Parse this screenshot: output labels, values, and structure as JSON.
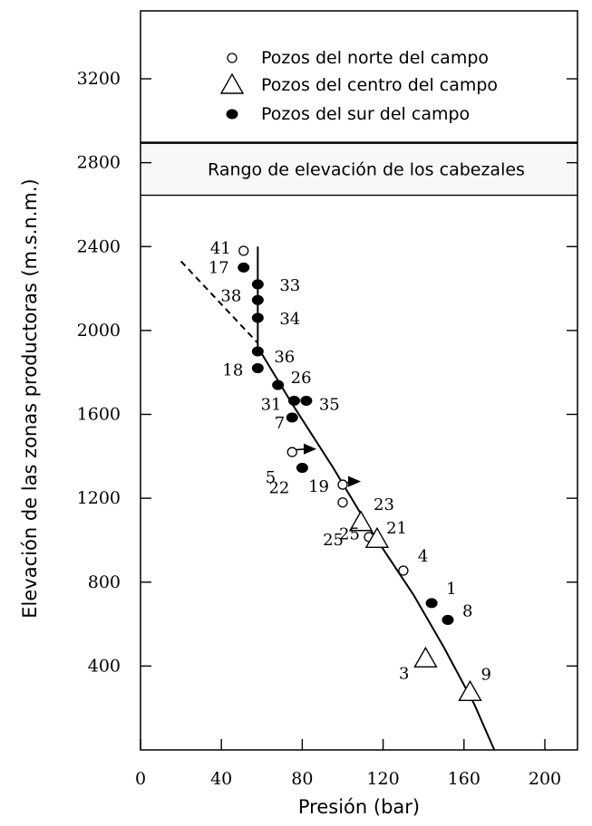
{
  "chart_data": {
    "type": "scatter",
    "xlabel": "Presión (bar)",
    "ylabel": "Elevación de las zonas productoras (m.s.n.m.)",
    "xlim": [
      0,
      220
    ],
    "ylim": [
      0,
      3600
    ],
    "x_ticks": [
      0,
      40,
      80,
      120,
      160,
      200
    ],
    "y_ticks": [
      400,
      800,
      1200,
      1600,
      2000,
      2400,
      2800,
      3200
    ],
    "grid": false,
    "legend": {
      "placement": "top",
      "entries": [
        {
          "marker": "open-circle",
          "label": "Pozos del norte del campo"
        },
        {
          "marker": "triangle",
          "label": "Pozos del centro del  campo"
        },
        {
          "marker": "filled-circle",
          "label": "Pozos del sur del campo"
        }
      ]
    },
    "band": {
      "label": "Rango de elevación de los cabezales",
      "y_range": [
        2645,
        2895
      ]
    },
    "series": [
      {
        "marker": "open-circle",
        "points": [
          {
            "label": "41",
            "x": 51,
            "y": 2380
          },
          {
            "label": "5",
            "x": 75,
            "y": 1420
          },
          {
            "label": "19",
            "x": 100,
            "y": 1265
          },
          {
            "label": "23",
            "x": 100,
            "y": 1180
          },
          {
            "label": "25",
            "x": 113,
            "y": 1015
          },
          {
            "label": "4",
            "x": 130,
            "y": 855
          }
        ]
      },
      {
        "marker": "triangle",
        "points": [
          {
            "label": "21",
            "x": 109,
            "y": 1085
          },
          {
            "label": "25",
            "x": 117,
            "y": 1005
          },
          {
            "label": "3",
            "x": 141,
            "y": 435
          },
          {
            "label": "9",
            "x": 163,
            "y": 275
          }
        ]
      },
      {
        "marker": "filled-circle",
        "points": [
          {
            "label": "17",
            "x": 51,
            "y": 2300
          },
          {
            "label": "33",
            "x": 58,
            "y": 2220
          },
          {
            "label": "38",
            "x": 58,
            "y": 2145
          },
          {
            "label": "34",
            "x": 58,
            "y": 2060
          },
          {
            "label": "36",
            "x": 58,
            "y": 1900
          },
          {
            "label": "18",
            "x": 58,
            "y": 1820
          },
          {
            "label": "26",
            "x": 68,
            "y": 1740
          },
          {
            "label": "31",
            "x": 76,
            "y": 1665
          },
          {
            "label": "35",
            "x": 82,
            "y": 1665
          },
          {
            "label": "7",
            "x": 75,
            "y": 1585
          },
          {
            "label": "22",
            "x": 80,
            "y": 1345
          },
          {
            "label": "1",
            "x": 144,
            "y": 700
          },
          {
            "label": "8",
            "x": 152,
            "y": 620
          }
        ]
      }
    ],
    "trend_lines": [
      {
        "style": "solid",
        "points": [
          [
            58,
            2400
          ],
          [
            58,
            1920
          ],
          [
            75,
            1650
          ],
          [
            95,
            1350
          ],
          [
            115,
            1030
          ],
          [
            135,
            740
          ],
          [
            150,
            490
          ],
          [
            165,
            220
          ],
          [
            175,
            0
          ]
        ]
      },
      {
        "style": "dashed",
        "points": [
          [
            20,
            2330
          ],
          [
            58,
            1940
          ]
        ]
      }
    ]
  }
}
